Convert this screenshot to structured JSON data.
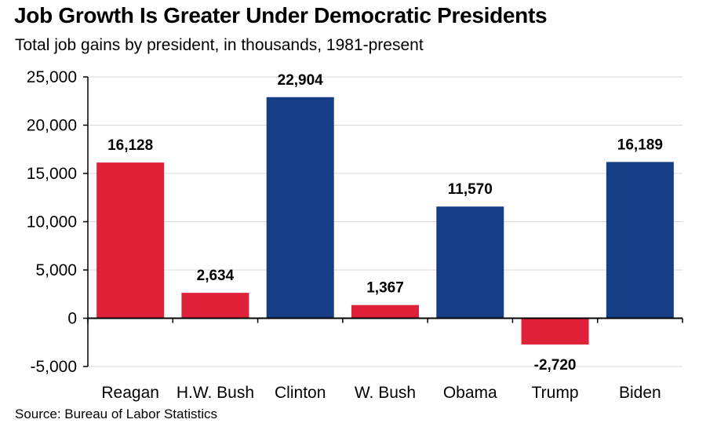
{
  "title": "Job Growth Is Greater Under Democratic Presidents",
  "subtitle": "Total job gains by president, in thousands, 1981-present",
  "source": "Source: Bureau of Labor Statistics",
  "colors": {
    "republican": "#E0213A",
    "democratic": "#173D84",
    "grid": "#D9D9D9",
    "axis": "#000000"
  },
  "chart_data": {
    "type": "bar",
    "title": "Job Growth Is Greater Under Democratic Presidents",
    "subtitle": "Total job gains by president, in thousands, 1981-present",
    "categories": [
      "Reagan",
      "H.W. Bush",
      "Clinton",
      "W. Bush",
      "Obama",
      "Trump",
      "Biden"
    ],
    "values": [
      16128,
      2634,
      22904,
      1367,
      11570,
      -2720,
      16189
    ],
    "value_labels": [
      "16,128",
      "2,634",
      "22,904",
      "1,367",
      "11,570",
      "-2,720",
      "16,189"
    ],
    "bar_colors": [
      "#E0213A",
      "#E0213A",
      "#173D84",
      "#E0213A",
      "#173D84",
      "#E0213A",
      "#173D84"
    ],
    "ylim": [
      -5000,
      25000
    ],
    "yticks": [
      -5000,
      0,
      5000,
      10000,
      15000,
      20000,
      25000
    ],
    "ytick_labels": [
      "-5,000",
      "0",
      "5,000",
      "10,000",
      "15,000",
      "20,000",
      "25,000"
    ],
    "xlabel": "",
    "ylabel": "",
    "grid": true,
    "legend": "none"
  }
}
